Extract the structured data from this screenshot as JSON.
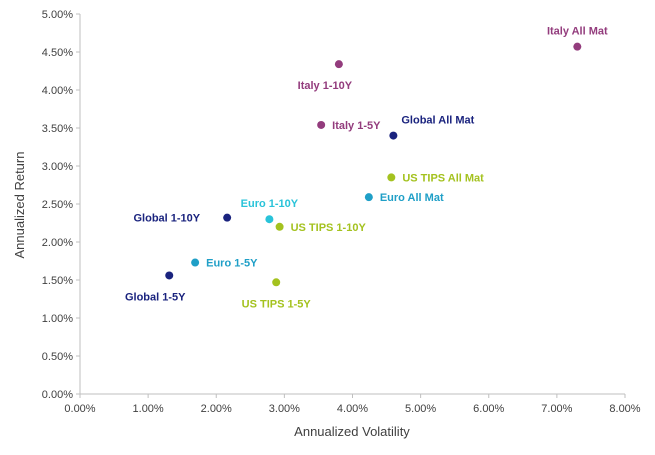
{
  "chart_data": {
    "type": "scatter",
    "title": "",
    "xlabel": "Annualized Volatility",
    "ylabel": "Annualized Return",
    "xlim": [
      0,
      8
    ],
    "ylim": [
      0,
      5
    ],
    "x_ticks": [
      "0.00%",
      "1.00%",
      "2.00%",
      "3.00%",
      "4.00%",
      "5.00%",
      "6.00%",
      "7.00%",
      "8.00%"
    ],
    "y_ticks": [
      "0.00%",
      "0.50%",
      "1.00%",
      "1.50%",
      "2.00%",
      "2.50%",
      "3.00%",
      "3.50%",
      "4.00%",
      "4.50%",
      "5.00%"
    ],
    "grid": false,
    "legend": "none",
    "points": [
      {
        "name": "Italy All Mat",
        "x": 7.3,
        "y": 4.57,
        "color": "#933c7d",
        "label_pos": "above"
      },
      {
        "name": "Italy 1-10Y",
        "x": 3.8,
        "y": 4.34,
        "color": "#933c7d",
        "label_pos": "below-left"
      },
      {
        "name": "Italy 1-5Y",
        "x": 3.54,
        "y": 3.54,
        "color": "#933c7d",
        "label_pos": "right"
      },
      {
        "name": "Global All Mat",
        "x": 4.6,
        "y": 3.4,
        "color": "#1a237e",
        "label_pos": "above-right"
      },
      {
        "name": "US TIPS All Mat",
        "x": 4.57,
        "y": 2.85,
        "color": "#a4c21f",
        "label_pos": "right"
      },
      {
        "name": "Euro All Mat",
        "x": 4.24,
        "y": 2.59,
        "color": "#1f9fc7",
        "label_pos": "right"
      },
      {
        "name": "Euro 1-10Y",
        "x": 2.78,
        "y": 2.3,
        "color": "#29c3d9",
        "label_pos": "above"
      },
      {
        "name": "US TIPS 1-10Y",
        "x": 2.93,
        "y": 2.2,
        "color": "#a4c21f",
        "label_pos": "right"
      },
      {
        "name": "Global 1-10Y",
        "x": 2.16,
        "y": 2.32,
        "color": "#1a237e",
        "label_pos": "left"
      },
      {
        "name": "Euro 1-5Y",
        "x": 1.69,
        "y": 1.73,
        "color": "#1f9fc7",
        "label_pos": "right"
      },
      {
        "name": "US TIPS 1-5Y",
        "x": 2.88,
        "y": 1.47,
        "color": "#a4c21f",
        "label_pos": "below"
      },
      {
        "name": "Global 1-5Y",
        "x": 1.31,
        "y": 1.56,
        "color": "#1a237e",
        "label_pos": "below-left"
      }
    ],
    "colors": {
      "axis": "#bfbfbf",
      "text": "#404040"
    }
  }
}
